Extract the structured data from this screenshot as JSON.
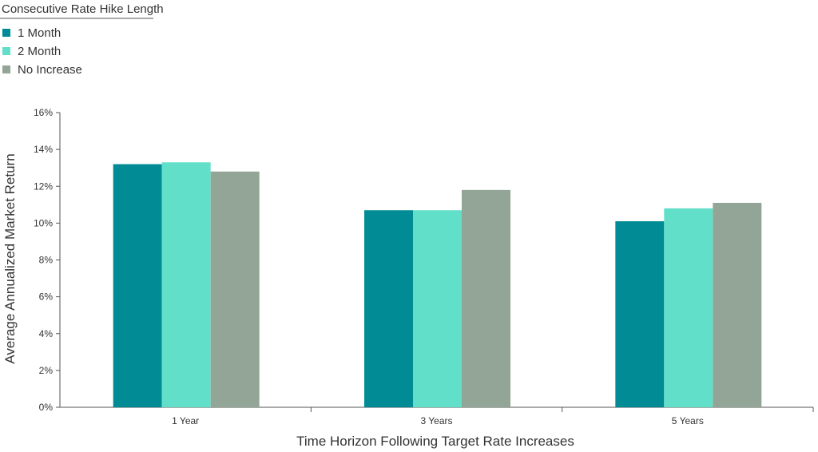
{
  "chart_data": {
    "type": "bar",
    "legend_title": "Consecutive Rate Hike Length",
    "legend_position": "top-left",
    "categories": [
      "1 Year",
      "3 Years",
      "5 Years"
    ],
    "series": [
      {
        "name": "1 Month",
        "color": "#008b95",
        "values": [
          13.2,
          10.7,
          10.1
        ]
      },
      {
        "name": "2 Month",
        "color": "#62dfc8",
        "values": [
          13.3,
          10.7,
          10.8
        ]
      },
      {
        "name": "No Increase",
        "color": "#93a596",
        "values": [
          12.8,
          11.8,
          11.1
        ]
      }
    ],
    "xlabel": "Time Horizon Following Target Rate Increases",
    "ylabel": "Average Annualized Market Return",
    "ylim": [
      0,
      16
    ],
    "yticks": [
      "0%",
      "2%",
      "4%",
      "6%",
      "8%",
      "10%",
      "12%",
      "14%",
      "16%"
    ],
    "grid": false
  }
}
